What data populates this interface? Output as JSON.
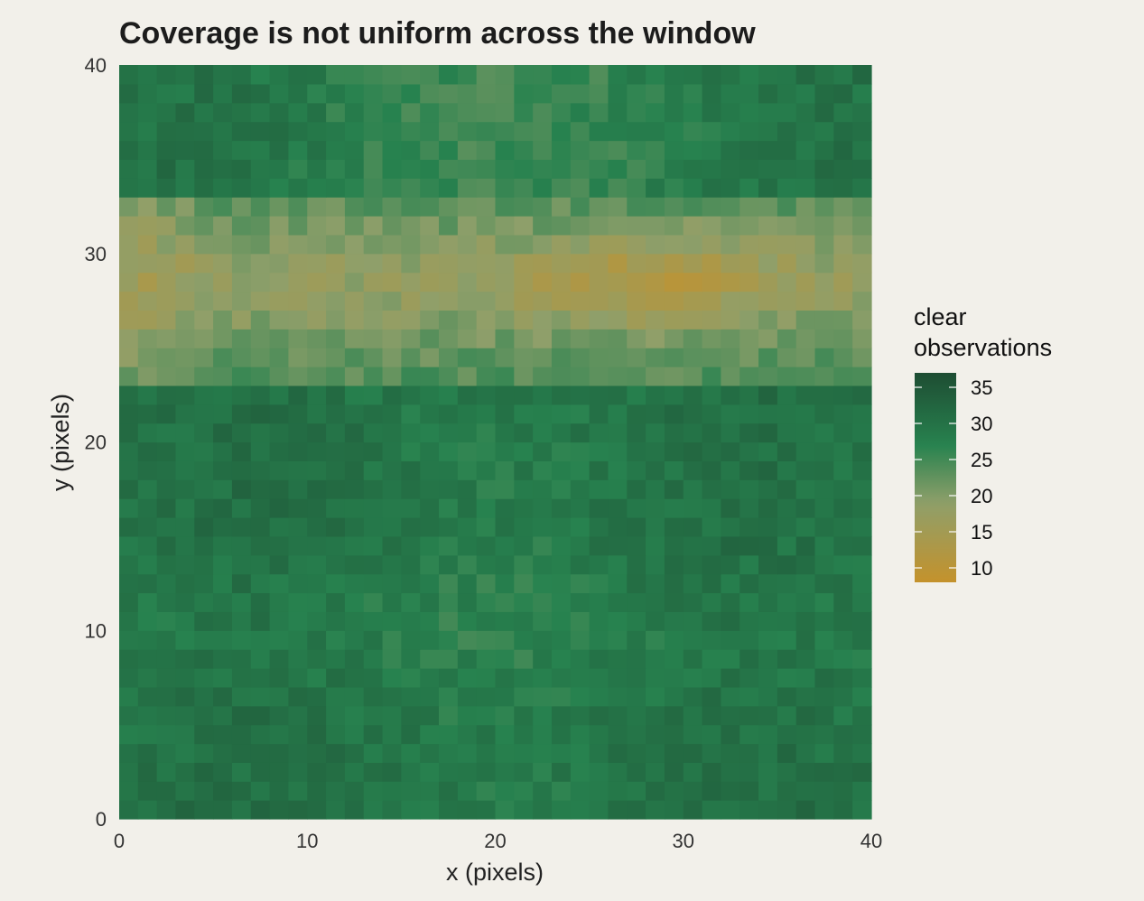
{
  "chart_data": {
    "type": "heatmap",
    "title": "Coverage is not uniform across the window",
    "xlabel": "x (pixels)",
    "ylabel": "y (pixels)",
    "xlim": [
      0,
      40
    ],
    "ylim": [
      0,
      40
    ],
    "grid_size": [
      40,
      40
    ],
    "x_ticks": [
      "0",
      "10",
      "20",
      "30",
      "40"
    ],
    "y_ticks": [
      "0",
      "10",
      "20",
      "30",
      "40"
    ],
    "legend": {
      "title_lines": [
        "clear",
        "observations"
      ],
      "ticks": [
        "35",
        "30",
        "25",
        "20",
        "15",
        "10"
      ],
      "tick_values": [
        35,
        30,
        25,
        20,
        15,
        10
      ],
      "range": [
        8,
        37
      ]
    },
    "colorscale": [
      "#c4922c",
      "#8f9f6a",
      "#27824f",
      "#1e4d33"
    ],
    "colorscale_stops": [
      8,
      19,
      27,
      37
    ],
    "background": "#f2f0ea",
    "description_of_pattern": [
      {
        "y_range": [
          0,
          23
        ],
        "typical_value": 29
      },
      {
        "y_range": [
          23,
          33
        ],
        "typical_value": 19,
        "min_value": 9,
        "min_near_x": 28
      },
      {
        "y_range": [
          33,
          40
        ],
        "typical_value": 27
      }
    ]
  }
}
